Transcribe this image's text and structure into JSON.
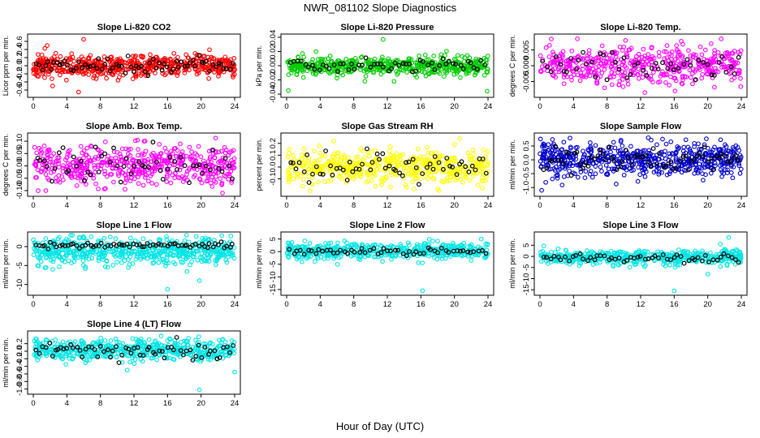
{
  "figure": {
    "title": "NWR_081102  Slope Diagnostics",
    "xlabel": "Hour of Day (UTC)"
  },
  "chart_data": [
    {
      "type": "scatter",
      "title": "Slope Li-820 CO2",
      "ylabel": "Licor ppm per min.",
      "xlim": [
        0,
        24
      ],
      "ylim": [
        -0.7,
        0.7
      ],
      "xticks": [
        0,
        4,
        8,
        12,
        16,
        20,
        24
      ],
      "yticks": [
        -0.6,
        -0.4,
        -0.2,
        0.0,
        0.2,
        0.4,
        0.6
      ],
      "ytick_labels": [
        "-0.6",
        "-0.4",
        "-0.2",
        "0.0",
        "0.2",
        "0.4",
        "0.6"
      ],
      "color": "#ff0000",
      "center": 0.0,
      "spread": 0.14,
      "n": 560,
      "black_n": 70,
      "seed": 11,
      "outliers": [
        [
          6.0,
          0.65
        ],
        [
          5.4,
          -0.65
        ],
        [
          2.3,
          -0.5
        ]
      ]
    },
    {
      "type": "scatter",
      "title": "Slope Li-820 Pressure",
      "ylabel": "kPa per min.",
      "xlim": [
        0,
        24
      ],
      "ylim": [
        -0.04,
        0.04
      ],
      "xticks": [
        0,
        4,
        8,
        12,
        16,
        20,
        24
      ],
      "yticks": [
        -0.04,
        -0.02,
        0.0,
        0.02,
        0.04
      ],
      "ytick_labels": [
        "-0.04",
        "-0.02",
        "0.00",
        "0.02",
        "0.04"
      ],
      "color": "#00cc00",
      "center": 0.0,
      "spread": 0.006,
      "n": 520,
      "black_n": 55,
      "seed": 23,
      "outliers": [
        [
          11.5,
          0.037
        ],
        [
          0.2,
          -0.035
        ],
        [
          23.9,
          -0.036
        ],
        [
          3.5,
          0.02
        ],
        [
          12.8,
          -0.022
        ]
      ]
    },
    {
      "type": "scatter",
      "title": "Slope Li-820 Temp.",
      "ylabel": "degrees C per min.",
      "xlim": [
        0,
        24
      ],
      "ylim": [
        -0.009,
        0.009
      ],
      "xticks": [
        0,
        4,
        8,
        12,
        16,
        20,
        24
      ],
      "yticks": [
        -0.005,
        0.0,
        0.005
      ],
      "ytick_labels": [
        "-0.005",
        "0.000",
        "0.005"
      ],
      "color": "#ff00ff",
      "center": 0.0,
      "spread": 0.0028,
      "n": 480,
      "black_n": 50,
      "seed": 37,
      "outliers": [
        [
          12.5,
          -0.0085
        ],
        [
          16.1,
          -0.008
        ],
        [
          21.6,
          0.0085
        ],
        [
          10.2,
          0.008
        ]
      ]
    },
    {
      "type": "scatter",
      "title": "Slope Amb. Box Temp.",
      "ylabel": "degrees C per min.",
      "xlim": [
        0,
        24
      ],
      "ylim": [
        -0.11,
        0.12
      ],
      "xticks": [
        0,
        4,
        8,
        12,
        16,
        20,
        24
      ],
      "yticks": [
        -0.1,
        -0.05,
        0.0,
        0.05,
        0.1
      ],
      "ytick_labels": [
        "-0.10",
        "-0.05",
        "0.00",
        "0.05",
        "0.10"
      ],
      "color": "#ff00ff",
      "center": 0.0,
      "spread": 0.04,
      "n": 520,
      "black_n": 55,
      "seed": 41,
      "outliers": [
        [
          1.5,
          -0.1
        ],
        [
          13.2,
          0.1
        ]
      ]
    },
    {
      "type": "scatter",
      "title": "Slope Gas Stream RH",
      "ylabel": "percent per min.",
      "xlim": [
        0,
        24
      ],
      "ylim": [
        -0.22,
        0.26
      ],
      "xticks": [
        0,
        4,
        8,
        12,
        16,
        20,
        24
      ],
      "yticks": [
        -0.1,
        0.0,
        0.1,
        0.2
      ],
      "ytick_labels": [
        "-0.1",
        "0.0",
        "0.1",
        "0.2"
      ],
      "color": "#ffff00",
      "center": 0.0,
      "spread": 0.07,
      "n": 520,
      "black_n": 60,
      "seed": 53,
      "outliers": [
        [
          3.9,
          0.18
        ],
        [
          5.6,
          0.22
        ],
        [
          20.6,
          0.24
        ],
        [
          2.8,
          -0.2
        ]
      ]
    },
    {
      "type": "scatter",
      "title": "Slope Sample Flow",
      "ylabel": "ml/min per min.",
      "xlim": [
        0,
        24
      ],
      "ylim": [
        -1.2,
        0.85
      ],
      "xticks": [
        0,
        4,
        8,
        12,
        16,
        20,
        24
      ],
      "yticks": [
        -1.0,
        -0.5,
        0.0,
        0.5
      ],
      "ytick_labels": [
        "-1.0",
        "-0.5",
        "0.0",
        "0.5"
      ],
      "color": "#0000cc",
      "center": 0.0,
      "spread": 0.28,
      "n": 560,
      "black_n": 70,
      "seed": 67,
      "outliers": [
        [
          0.2,
          -1.1
        ],
        [
          1.0,
          0.55
        ],
        [
          15.6,
          0.65
        ]
      ]
    },
    {
      "type": "scatter",
      "title": "Slope Line 1 Flow",
      "ylabel": "ml/min per min.",
      "xlim": [
        0,
        24
      ],
      "ylim": [
        -12,
        3
      ],
      "xticks": [
        0,
        4,
        8,
        12,
        16,
        20,
        24
      ],
      "yticks": [
        -10,
        -5,
        0
      ],
      "ytick_labels": [
        "-10",
        "-5",
        "0"
      ],
      "color": "#00e5e5",
      "center": -1.2,
      "spread": 1.7,
      "n": 560,
      "black_n": 70,
      "seed": 71,
      "black_center": 0.3,
      "black_spread": 0.35,
      "outliers": [
        [
          16.0,
          -11.3
        ],
        [
          19.8,
          -9.0
        ],
        [
          5.5,
          2.5
        ],
        [
          20.5,
          2.3
        ]
      ]
    },
    {
      "type": "scatter",
      "title": "Slope Line 2 Flow",
      "ylabel": "ml/min per min.",
      "xlim": [
        0,
        24
      ],
      "ylim": [
        -16,
        6.5
      ],
      "xticks": [
        0,
        4,
        8,
        12,
        16,
        20,
        24
      ],
      "yticks": [
        -15,
        -10,
        -5,
        0,
        5
      ],
      "ytick_labels": [
        "-15",
        "-10",
        "-5",
        "0",
        "5"
      ],
      "color": "#00e5e5",
      "center": 0.3,
      "spread": 1.6,
      "n": 500,
      "black_n": 55,
      "seed": 83,
      "black_center": 0.0,
      "black_spread": 0.8,
      "outliers": [
        [
          16.2,
          -15.5
        ],
        [
          23.2,
          5.0
        ],
        [
          22.0,
          -3.5
        ]
      ]
    },
    {
      "type": "scatter",
      "title": "Slope Line 3 Flow",
      "ylabel": "ml/min per min.",
      "xlim": [
        0,
        24
      ],
      "ylim": [
        -16,
        9.5
      ],
      "xticks": [
        0,
        4,
        8,
        12,
        16,
        20,
        24
      ],
      "yticks": [
        -15,
        -10,
        -5,
        0,
        5
      ],
      "ytick_labels": [
        "-15",
        "-10",
        "-5",
        "0",
        "5"
      ],
      "color": "#00e5e5",
      "center": -0.5,
      "spread": 1.7,
      "n": 500,
      "black_n": 55,
      "seed": 97,
      "black_center": -0.5,
      "black_spread": 1.0,
      "outliers": [
        [
          16.0,
          -15.5
        ],
        [
          22.5,
          8.5
        ],
        [
          21.5,
          5.5
        ],
        [
          20.0,
          -8.0
        ]
      ]
    },
    {
      "type": "scatter",
      "title": "Slope Line 4 (LT) Flow",
      "ylabel": "ml/min per min.",
      "xlim": [
        0,
        24
      ],
      "ylim": [
        -1.05,
        0.45
      ],
      "xticks": [
        0,
        4,
        8,
        12,
        16,
        20,
        24
      ],
      "yticks": [
        -1.0,
        -0.8,
        -0.6,
        -0.4,
        -0.2,
        0.0,
        0.2
      ],
      "ytick_labels": [
        "-1.0",
        "-0.8",
        "-0.6",
        "-0.4",
        "-0.2",
        "0.0",
        "0.2"
      ],
      "color": "#00e5e5",
      "center": 0.02,
      "spread": 0.14,
      "n": 520,
      "black_n": 65,
      "seed": 109,
      "outliers": [
        [
          19.8,
          -1.02
        ],
        [
          11.2,
          -0.5
        ],
        [
          24.0,
          -0.55
        ],
        [
          0.3,
          0.33
        ]
      ]
    }
  ]
}
